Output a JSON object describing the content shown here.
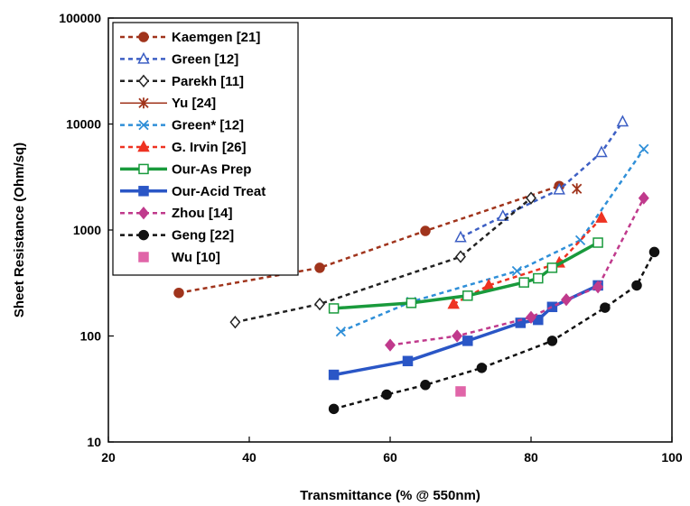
{
  "chart_data": {
    "type": "scatter",
    "title": "",
    "xlabel": "Transmittance (% @ 550nm)",
    "ylabel": "Sheet Resistance (Ohm/sq)",
    "xlim": [
      20,
      100
    ],
    "ylim": [
      10,
      100000
    ],
    "yscale": "log",
    "xticks": [
      "20",
      "40",
      "60",
      "80",
      "100"
    ],
    "yticks": [
      "10",
      "100",
      "1000",
      "10000",
      "100000"
    ],
    "grid": false,
    "legend_position": "top-left",
    "series": [
      {
        "name": "Kaemgen [21]",
        "color": "#a0341c",
        "marker": "circle",
        "filled": true,
        "line": "dashed",
        "width": 2.5,
        "x": [
          30,
          50,
          65,
          84
        ],
        "y": [
          255,
          440,
          980,
          2600
        ]
      },
      {
        "name": "Green [12]",
        "color": "#3d5fc4",
        "marker": "triangle",
        "filled": false,
        "line": "dashed",
        "width": 2.5,
        "x": [
          70,
          76,
          84,
          90,
          93
        ],
        "y": [
          850,
          1350,
          2400,
          5400,
          10500
        ]
      },
      {
        "name": "Parekh [11]",
        "color": "#222222",
        "marker": "diamond",
        "filled": false,
        "line": "dashed",
        "width": 2.5,
        "x": [
          38,
          50,
          70,
          80
        ],
        "y": [
          135,
          200,
          560,
          2000
        ]
      },
      {
        "name": "Yu [24]",
        "color": "#a0341c",
        "marker": "asterisk",
        "filled": false,
        "line": "solid",
        "width": 1.5,
        "x": [
          86.5
        ],
        "y": [
          2450
        ]
      },
      {
        "name": "Green* [12]",
        "color": "#2f8fd8",
        "marker": "x",
        "filled": false,
        "line": "dashed",
        "width": 2.5,
        "x": [
          53,
          63,
          78,
          87,
          96
        ],
        "y": [
          110,
          210,
          410,
          800,
          5800
        ]
      },
      {
        "name": "G. Irvin [26]",
        "color": "#ee3322",
        "marker": "triangle",
        "filled": true,
        "line": "dashed",
        "width": 2.5,
        "x": [
          69,
          74,
          84,
          90
        ],
        "y": [
          200,
          300,
          490,
          1300
        ]
      },
      {
        "name": "Our-As Prep",
        "color": "#199a3c",
        "marker": "square",
        "filled": false,
        "line": "solid",
        "width": 3.5,
        "x": [
          52,
          63,
          71,
          79,
          81,
          83,
          89.5
        ],
        "y": [
          182,
          205,
          240,
          320,
          350,
          440,
          760
        ]
      },
      {
        "name": "Our-Acid Treat",
        "color": "#2a56c6",
        "marker": "square",
        "filled": true,
        "line": "solid",
        "width": 3.5,
        "x": [
          52,
          62.5,
          71,
          78.5,
          81,
          83,
          89.5
        ],
        "y": [
          43,
          58,
          90,
          133,
          142,
          188,
          300
        ]
      },
      {
        "name": "Zhou [14]",
        "color": "#c03a8c",
        "marker": "diamond",
        "filled": true,
        "line": "dashed",
        "width": 2.5,
        "x": [
          60,
          69.5,
          80,
          85,
          89.5,
          96
        ],
        "y": [
          82,
          100,
          150,
          220,
          290,
          2000
        ]
      },
      {
        "name": "Geng [22]",
        "color": "#111111",
        "marker": "circle",
        "filled": true,
        "line": "dashed",
        "width": 2.5,
        "x": [
          52,
          59.5,
          65,
          73,
          83,
          90.5,
          95,
          97.5
        ],
        "y": [
          20.5,
          28,
          34.5,
          50,
          90,
          185,
          300,
          620
        ]
      },
      {
        "name": "Wu [10]",
        "color": "#e065a8",
        "marker": "square",
        "filled": true,
        "line": "none",
        "width": 0,
        "x": [
          70
        ],
        "y": [
          30
        ]
      }
    ]
  }
}
